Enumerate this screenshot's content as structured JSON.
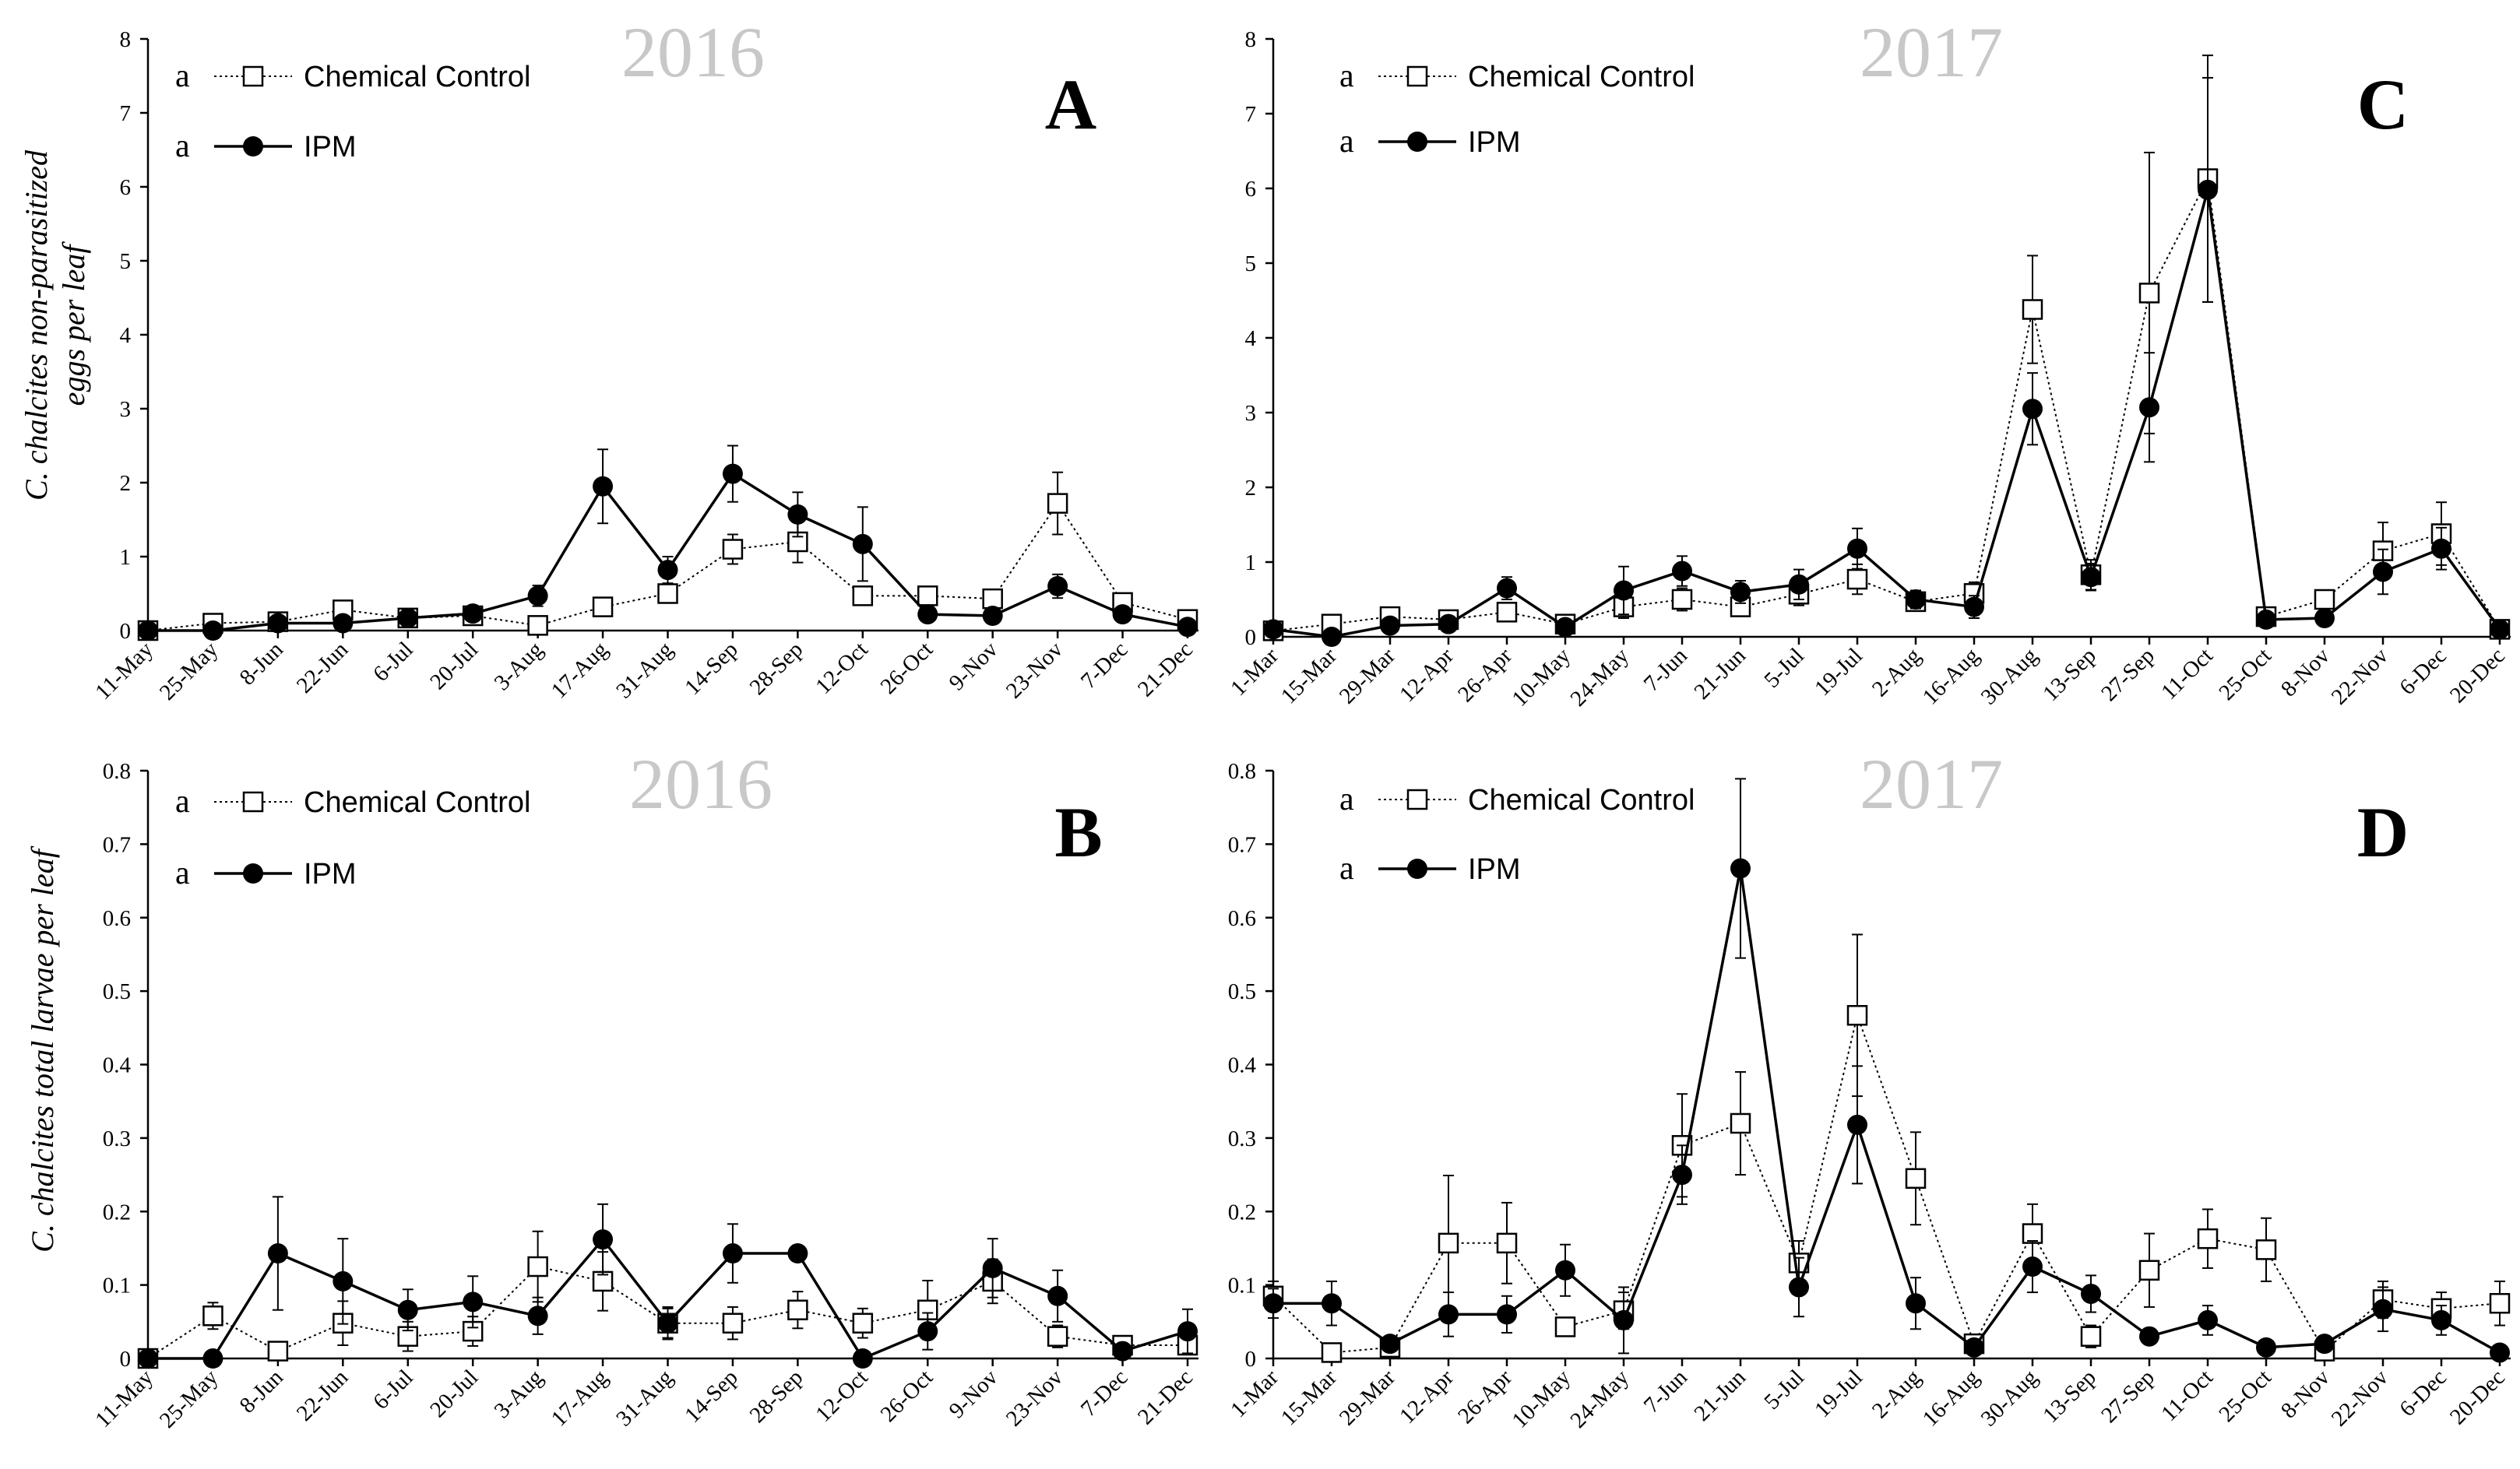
{
  "legend": {
    "chemical": "Chemical Control",
    "ipm": "IPM",
    "sig_chemical": "a",
    "sig_ipm": "a"
  },
  "y_labels": {
    "top_line1": "C. chalcites non-parasitized",
    "top_line2": "eggs per leaf",
    "bottom": "C. chalcites total larvae per leaf"
  },
  "chart_data": [
    {
      "panel": "A",
      "year": "2016",
      "type": "line",
      "ylabel": "C. chalcites non-parasitized eggs per leaf",
      "ylim": [
        0,
        8
      ],
      "yticks": [
        "0",
        "1",
        "2",
        "3",
        "4",
        "5",
        "6",
        "7",
        "8"
      ],
      "categories": [
        "11-May",
        "25-May",
        "8-Jun",
        "22-Jun",
        "6-Jul",
        "20-Jul",
        "3-Aug",
        "17-Aug",
        "31-Aug",
        "14-Sep",
        "28-Sep",
        "12-Oct",
        "26-Oct",
        "9-Nov",
        "23-Nov",
        "7-Dec",
        "21-Dec"
      ],
      "series": [
        {
          "name": "Chemical Control",
          "values": [
            0,
            0.1,
            0.12,
            0.28,
            0.17,
            0.2,
            0.07,
            0.32,
            0.5,
            1.1,
            1.2,
            0.47,
            0.47,
            0.43,
            1.72,
            0.38,
            0.15
          ],
          "errors": [
            0,
            0.05,
            0.06,
            0.1,
            0.05,
            0.06,
            0.04,
            0.07,
            0.1,
            0.2,
            0.28,
            0.12,
            0.08,
            0.1,
            0.42,
            0.08,
            0.05
          ]
        },
        {
          "name": "IPM",
          "values": [
            0,
            0,
            0.1,
            0.1,
            0.17,
            0.23,
            0.47,
            1.95,
            0.82,
            2.12,
            1.57,
            1.17,
            0.22,
            0.2,
            0.6,
            0.22,
            0.05
          ],
          "errors": [
            0,
            0.02,
            0.05,
            0.04,
            0.06,
            0.08,
            0.14,
            0.5,
            0.18,
            0.38,
            0.3,
            0.5,
            0.06,
            0.08,
            0.16,
            0.07,
            0.03
          ]
        }
      ]
    },
    {
      "panel": "C",
      "year": "2017",
      "type": "line",
      "ylabel": "",
      "ylim": [
        0,
        8
      ],
      "yticks": [
        "0",
        "1",
        "2",
        "3",
        "4",
        "5",
        "6",
        "7",
        "8"
      ],
      "categories": [
        "1-Mar",
        "15-Mar",
        "29-Mar",
        "12-Apr",
        "26-Apr",
        "10-May",
        "24-May",
        "7-Jun",
        "21-Jun",
        "5-Jul",
        "19-Jul",
        "2-Aug",
        "16-Aug",
        "30-Aug",
        "13-Sep",
        "27-Sep",
        "11-Oct",
        "25-Oct",
        "8-Nov",
        "22-Nov",
        "6-Dec",
        "20-Dec"
      ],
      "series": [
        {
          "name": "Chemical Control",
          "values": [
            0.08,
            0.17,
            0.27,
            0.23,
            0.33,
            0.17,
            0.4,
            0.5,
            0.4,
            0.57,
            0.77,
            0.47,
            0.58,
            4.38,
            0.83,
            4.6,
            6.13,
            0.27,
            0.5,
            1.15,
            1.38,
            0.1
          ],
          "errors": [
            0.05,
            0.06,
            0.1,
            0.08,
            0.12,
            0.06,
            0.15,
            0.15,
            0.12,
            0.15,
            0.2,
            0.12,
            0.15,
            0.72,
            0.2,
            1.88,
            1.65,
            0.07,
            0.12,
            0.38,
            0.42,
            0.04
          ]
        },
        {
          "name": "IPM",
          "values": [
            0.1,
            0,
            0.15,
            0.17,
            0.65,
            0.13,
            0.62,
            0.88,
            0.6,
            0.7,
            1.18,
            0.5,
            0.4,
            3.05,
            0.8,
            3.07,
            5.98,
            0.23,
            0.25,
            0.87,
            1.18,
            0.1
          ],
          "errors": [
            0.05,
            0.02,
            0.08,
            0.08,
            0.15,
            0.06,
            0.32,
            0.2,
            0.15,
            0.2,
            0.27,
            0.12,
            0.15,
            0.48,
            0.18,
            0.73,
            1.5,
            0.06,
            0.07,
            0.3,
            0.28,
            0.04
          ]
        }
      ]
    },
    {
      "panel": "B",
      "year": "2016",
      "type": "line",
      "ylabel": "C. chalcites total larvae per leaf",
      "ylim": [
        0,
        0.8
      ],
      "yticks": [
        "0",
        "0.1",
        "0.2",
        "0.3",
        "0.4",
        "0.5",
        "0.6",
        "0.7",
        "0.8"
      ],
      "categories": [
        "11-May",
        "25-May",
        "8-Jun",
        "22-Jun",
        "6-Jul",
        "20-Jul",
        "3-Aug",
        "17-Aug",
        "31-Aug",
        "14-Sep",
        "28-Sep",
        "12-Oct",
        "26-Oct",
        "9-Nov",
        "23-Nov",
        "7-Dec",
        "21-Dec"
      ],
      "series": [
        {
          "name": "Chemical Control",
          "values": [
            0,
            0.058,
            0.01,
            0.048,
            0.03,
            0.037,
            0.125,
            0.105,
            0.048,
            0.048,
            0.066,
            0.048,
            0.066,
            0.105,
            0.03,
            0.018,
            0.018
          ],
          "errors": [
            0,
            0.018,
            0.005,
            0.03,
            0.02,
            0.02,
            0.048,
            0.04,
            0.02,
            0.022,
            0.025,
            0.02,
            0.04,
            0.03,
            0.015,
            0.008,
            0.008
          ]
        },
        {
          "name": "IPM",
          "values": [
            0,
            0,
            0.143,
            0.105,
            0.066,
            0.077,
            0.058,
            0.162,
            0.048,
            0.143,
            0.143,
            0,
            0.037,
            0.123,
            0.085,
            0.01,
            0.037
          ],
          "errors": [
            0,
            0,
            0.077,
            0.058,
            0.028,
            0.035,
            0.025,
            0.048,
            0.022,
            0.04,
            0,
            0,
            0.025,
            0.04,
            0.035,
            0.005,
            0.03
          ]
        }
      ]
    },
    {
      "panel": "D",
      "year": "2017",
      "type": "line",
      "ylabel": "",
      "ylim": [
        0,
        0.8
      ],
      "yticks": [
        "0",
        "0.1",
        "0.2",
        "0.3",
        "0.4",
        "0.5",
        "0.6",
        "0.7",
        "0.8"
      ],
      "categories": [
        "1-Mar",
        "15-Mar",
        "29-Mar",
        "12-Apr",
        "26-Apr",
        "10-May",
        "24-May",
        "7-Jun",
        "21-Jun",
        "5-Jul",
        "19-Jul",
        "2-Aug",
        "16-Aug",
        "30-Aug",
        "13-Sep",
        "27-Sep",
        "11-Oct",
        "25-Oct",
        "8-Nov",
        "22-Nov",
        "6-Dec",
        "20-Dec"
      ],
      "series": [
        {
          "name": "Chemical Control",
          "values": [
            0.085,
            0.008,
            0.015,
            0.157,
            0.157,
            0.043,
            0.065,
            0.29,
            0.32,
            0.13,
            0.467,
            0.245,
            0.02,
            0.17,
            0.03,
            0.12,
            0.163,
            0.148,
            0.01,
            0.08,
            0.068,
            0.075
          ],
          "errors": [
            0.02,
            0.005,
            0.008,
            0.092,
            0.055,
            0.012,
            0.025,
            0.07,
            0.07,
            0.03,
            0.11,
            0.063,
            0.01,
            0.04,
            0.015,
            0.05,
            0.04,
            0.043,
            0.005,
            0.025,
            0.022,
            0.03
          ]
        },
        {
          "name": "IPM",
          "values": [
            0.075,
            0.075,
            0.02,
            0.06,
            0.06,
            0.12,
            0.052,
            0.25,
            0.667,
            0.097,
            0.318,
            0.075,
            0.015,
            0.125,
            0.088,
            0.03,
            0.052,
            0.015,
            0.02,
            0.067,
            0.052,
            0.008
          ],
          "errors": [
            0.02,
            0.03,
            0.005,
            0.03,
            0.025,
            0.035,
            0.045,
            0.04,
            0.122,
            0.04,
            0.08,
            0.035,
            0.005,
            0.035,
            0.025,
            0.01,
            0.02,
            0.005,
            0.005,
            0.03,
            0.02,
            0.004
          ]
        }
      ]
    }
  ]
}
